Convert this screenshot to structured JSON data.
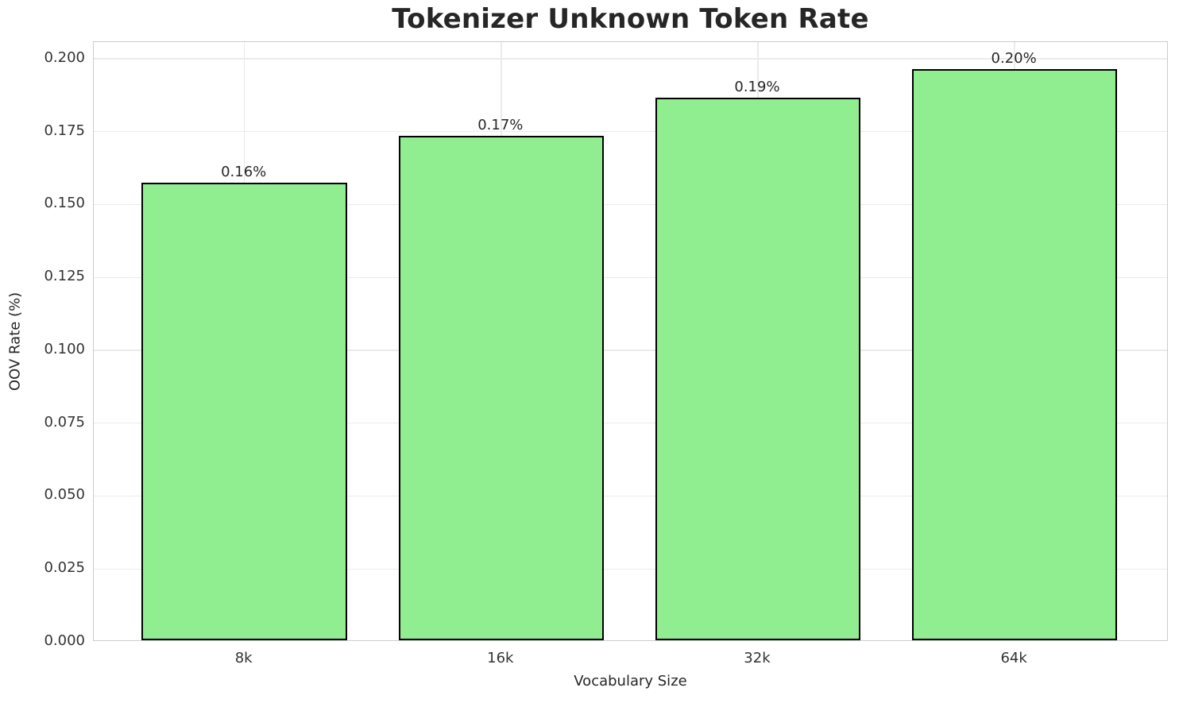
{
  "chart_data": {
    "type": "bar",
    "title": "Tokenizer Unknown Token Rate",
    "xlabel": "Vocabulary Size",
    "ylabel": "OOV Rate (%)",
    "categories": [
      "8k",
      "16k",
      "32k",
      "64k"
    ],
    "values": [
      0.157,
      0.173,
      0.186,
      0.196
    ],
    "bar_labels": [
      "0.16%",
      "0.17%",
      "0.19%",
      "0.20%"
    ],
    "ylim": [
      0,
      0.2057
    ],
    "yticks": [
      0,
      0.025,
      0.05,
      0.075,
      0.1,
      0.125,
      0.15,
      0.175,
      0.2
    ],
    "ytick_labels": [
      "0.000",
      "0.025",
      "0.050",
      "0.075",
      "0.100",
      "0.125",
      "0.150",
      "0.175",
      "0.200"
    ],
    "grid": true,
    "legend_position": "none",
    "colors": {
      "bar_fill": "#90EE90",
      "bar_edge": "#000000",
      "grid": "#EBEBEB",
      "spine": "#CCCCCC",
      "title_text": "#262626",
      "tick_text": "#333333"
    }
  }
}
